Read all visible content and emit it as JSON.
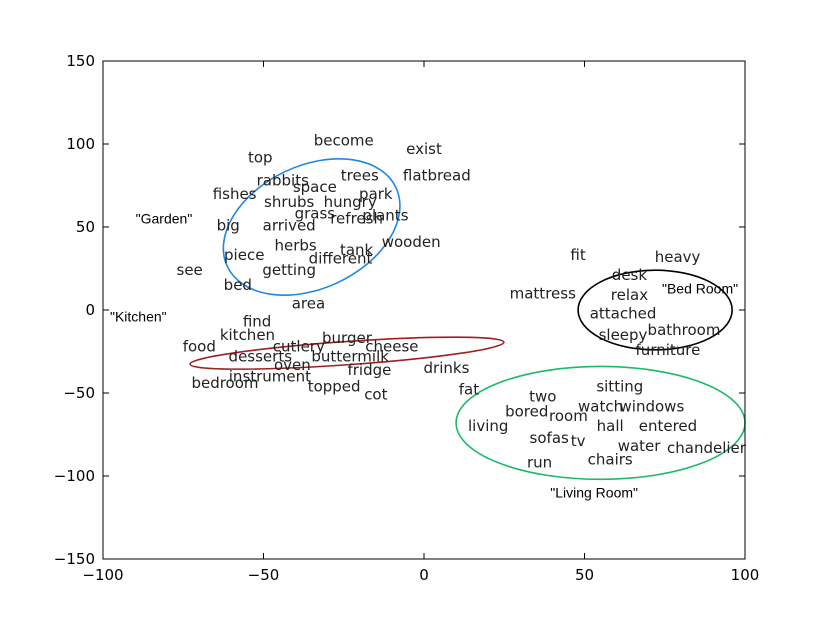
{
  "chart_data": {
    "type": "scatter",
    "title": "",
    "xlabel": "",
    "ylabel": "",
    "xlim": [
      -100,
      100
    ],
    "ylim": [
      -150,
      150
    ],
    "grid": false,
    "x_ticks": [
      -100,
      -50,
      0,
      50,
      100
    ],
    "x_tick_labels": [
      "−100",
      "−50",
      "0",
      "50",
      "100"
    ],
    "y_ticks": [
      150,
      100,
      50,
      0,
      -50,
      -100,
      -150
    ],
    "y_tick_labels": [
      "150",
      "100",
      "50",
      "0",
      "−50",
      "−100",
      "−150"
    ],
    "points": [
      {
        "label": "become",
        "x": -25,
        "y": 102
      },
      {
        "label": "exist",
        "x": 0,
        "y": 97
      },
      {
        "label": "top",
        "x": -51,
        "y": 92
      },
      {
        "label": "trees",
        "x": -20,
        "y": 81
      },
      {
        "label": "flatbread",
        "x": 4,
        "y": 81
      },
      {
        "label": "rabbits",
        "x": -44,
        "y": 78
      },
      {
        "label": "space",
        "x": -34,
        "y": 74
      },
      {
        "label": "fishes",
        "x": -59,
        "y": 70
      },
      {
        "label": "park",
        "x": -15,
        "y": 70
      },
      {
        "label": "shrubs",
        "x": -42,
        "y": 65
      },
      {
        "label": "hungry",
        "x": -23,
        "y": 65
      },
      {
        "label": "grass",
        "x": -34,
        "y": 58
      },
      {
        "label": "refresh",
        "x": -21,
        "y": 55
      },
      {
        "label": "plants",
        "x": -12,
        "y": 57
      },
      {
        "label": "big",
        "x": -61,
        "y": 51
      },
      {
        "label": "arrived",
        "x": -42,
        "y": 51
      },
      {
        "label": "wooden",
        "x": -4,
        "y": 41
      },
      {
        "label": "herbs",
        "x": -40,
        "y": 39
      },
      {
        "label": "tank",
        "x": -21,
        "y": 36
      },
      {
        "label": "piece",
        "x": -56,
        "y": 33
      },
      {
        "label": "different",
        "x": -26,
        "y": 31
      },
      {
        "label": "see",
        "x": -73,
        "y": 24
      },
      {
        "label": "getting",
        "x": -42,
        "y": 24
      },
      {
        "label": "bed",
        "x": -58,
        "y": 15
      },
      {
        "label": "fit",
        "x": 48,
        "y": 33
      },
      {
        "label": "heavy",
        "x": 79,
        "y": 32
      },
      {
        "label": "desk",
        "x": 64,
        "y": 21
      },
      {
        "label": "mattress",
        "x": 37,
        "y": 10
      },
      {
        "label": "relax",
        "x": 64,
        "y": 9
      },
      {
        "label": "area",
        "x": -36,
        "y": 4
      },
      {
        "label": "attached",
        "x": 62,
        "y": -2
      },
      {
        "label": "find",
        "x": -52,
        "y": -7
      },
      {
        "label": "bathroom",
        "x": 81,
        "y": -12
      },
      {
        "label": "kitchen",
        "x": -55,
        "y": -15
      },
      {
        "label": "sleepy",
        "x": 62,
        "y": -15
      },
      {
        "label": "burger",
        "x": -24,
        "y": -17
      },
      {
        "label": "food",
        "x": -70,
        "y": -22
      },
      {
        "label": "cutlery",
        "x": -39,
        "y": -22
      },
      {
        "label": "cheese",
        "x": -10,
        "y": -22
      },
      {
        "label": "furniture",
        "x": 76,
        "y": -24
      },
      {
        "label": "desserts",
        "x": -51,
        "y": -28
      },
      {
        "label": "buttermilk",
        "x": -23,
        "y": -28
      },
      {
        "label": "oven",
        "x": -41,
        "y": -33
      },
      {
        "label": "fridge",
        "x": -17,
        "y": -36
      },
      {
        "label": "drinks",
        "x": 7,
        "y": -35
      },
      {
        "label": "instrument",
        "x": -48,
        "y": -40
      },
      {
        "label": "bedroom",
        "x": -62,
        "y": -44
      },
      {
        "label": "topped",
        "x": -28,
        "y": -46
      },
      {
        "label": "fat",
        "x": 14,
        "y": -48
      },
      {
        "label": "cot",
        "x": -15,
        "y": -51
      },
      {
        "label": "sitting",
        "x": 61,
        "y": -46
      },
      {
        "label": "two",
        "x": 37,
        "y": -52
      },
      {
        "label": "watch",
        "x": 55,
        "y": -58
      },
      {
        "label": "windows",
        "x": 71,
        "y": -58
      },
      {
        "label": "bored",
        "x": 32,
        "y": -61
      },
      {
        "label": "room",
        "x": 45,
        "y": -64
      },
      {
        "label": "living",
        "x": 20,
        "y": -70
      },
      {
        "label": "hall",
        "x": 58,
        "y": -70
      },
      {
        "label": "entered",
        "x": 76,
        "y": -70
      },
      {
        "label": "sofas",
        "x": 39,
        "y": -77
      },
      {
        "label": "tv",
        "x": 48,
        "y": -79
      },
      {
        "label": "water",
        "x": 67,
        "y": -82
      },
      {
        "label": "chandelier",
        "x": 88,
        "y": -83
      },
      {
        "label": "chairs",
        "x": 58,
        "y": -90
      },
      {
        "label": "run",
        "x": 36,
        "y": -92
      }
    ],
    "clusters": [
      {
        "label": "\"Garden\"",
        "color": "#1f87e0",
        "center": [
          -35,
          50
        ],
        "radii": [
          29,
          37
        ],
        "rotation": -25,
        "label_at": [
          -81,
          55
        ]
      },
      {
        "label": "\"Kitchen\"",
        "color": "#a01f1f",
        "center": [
          -24,
          -26
        ],
        "radii": [
          49,
          7
        ],
        "rotation": -4,
        "label_at": [
          -89,
          -4
        ]
      },
      {
        "label": "\"Bed Room\"",
        "color": "#000000",
        "center": [
          72,
          0
        ],
        "radii": [
          24,
          24
        ],
        "rotation": 0,
        "label_at": [
          86,
          13
        ]
      },
      {
        "label": "\"Living Room\"",
        "color": "#1fb86a",
        "center": [
          55,
          -68
        ],
        "radii": [
          45,
          34
        ],
        "rotation": 0,
        "label_at": [
          53,
          -110
        ]
      }
    ]
  }
}
